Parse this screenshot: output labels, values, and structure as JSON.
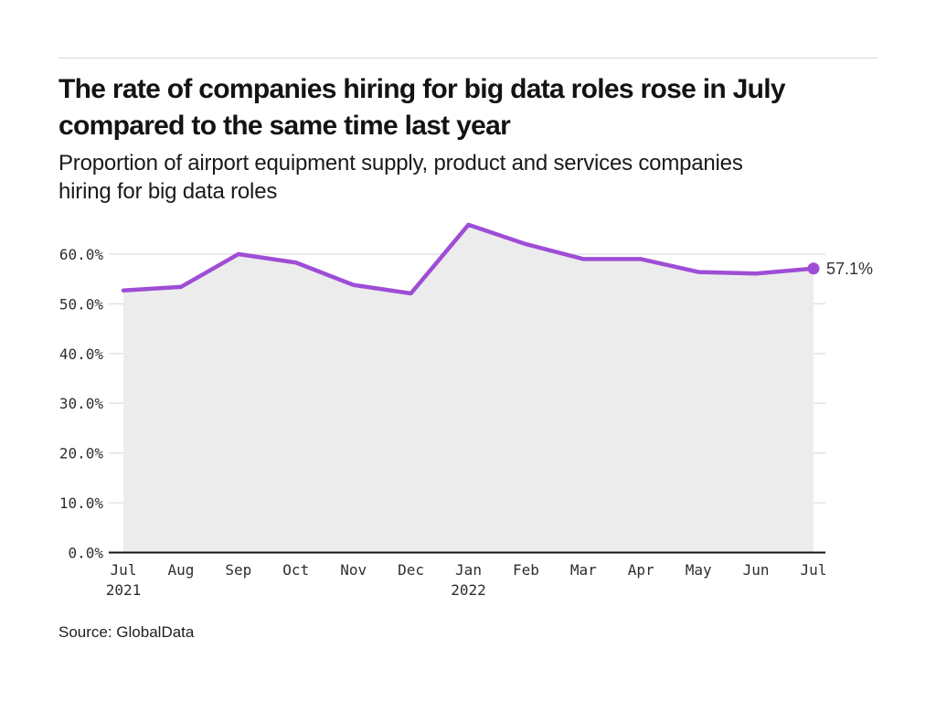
{
  "header": {
    "title_lines": [
      "The rate of companies hiring for big data roles rose in July",
      "compared to the same time last year"
    ],
    "subtitle_lines": [
      "Proportion of airport equipment supply, product and services companies",
      "hiring for big data roles"
    ]
  },
  "footer": {
    "source": "Source: GlobalData"
  },
  "chart_data": {
    "type": "area",
    "title": "The rate of companies hiring for big data roles rose in July compared to the same time last year",
    "subtitle": "Proportion of airport equipment supply, product and services companies hiring for big data roles",
    "categories": [
      "Jul",
      "Aug",
      "Sep",
      "Oct",
      "Nov",
      "Dec",
      "Jan",
      "Feb",
      "Mar",
      "Apr",
      "May",
      "Jun",
      "Jul"
    ],
    "year_labels": [
      {
        "index": 0,
        "label": "2021"
      },
      {
        "index": 6,
        "label": "2022"
      }
    ],
    "values": [
      52.7,
      53.4,
      60.0,
      58.3,
      53.8,
      52.1,
      65.9,
      62.0,
      59.0,
      59.0,
      56.4,
      56.1,
      57.1
    ],
    "yticks": [
      "0.0%",
      "10.0%",
      "20.0%",
      "30.0%",
      "40.0%",
      "50.0%",
      "60.0%"
    ],
    "ytick_values": [
      0,
      10,
      20,
      30,
      40,
      50,
      60
    ],
    "ylim": [
      0,
      67
    ],
    "grid": "horizontal",
    "legend": "none",
    "annotation": "57.1%",
    "colors": {
      "line": "#9E4DD6",
      "fill": "#ECECEC",
      "grid": "#DCDCDC",
      "axis": "#111111",
      "tick_text": "#2E2E2E",
      "annotation_text": "#333333"
    }
  }
}
